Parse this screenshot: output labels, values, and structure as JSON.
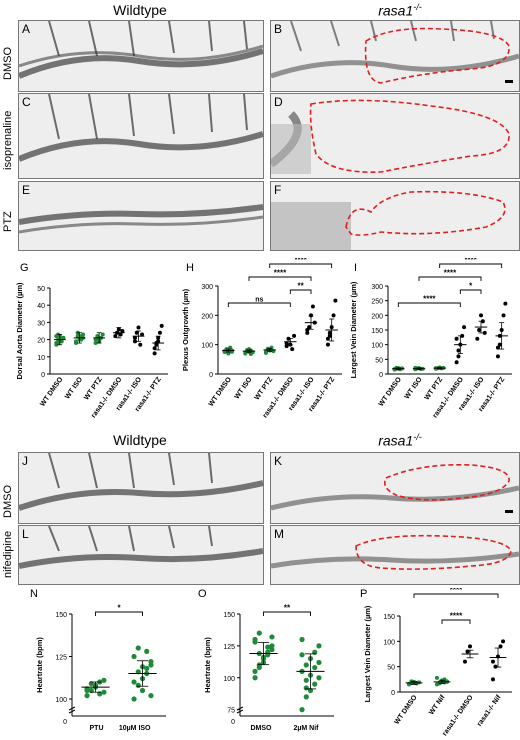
{
  "header_top": {
    "wildtype": "Wildtype",
    "mutant": "rasa1",
    "mutant_sup": "-/-"
  },
  "header_bottom": {
    "wildtype": "Wildtype",
    "mutant": "rasa1",
    "mutant_sup": "-/-"
  },
  "row_labels": {
    "dmso": "DMSO",
    "isoprenaline": "isoprenaline",
    "ptz": "PTZ",
    "dmso2": "DMSO",
    "nifedipine": "nifedipine"
  },
  "panel_letters": {
    "A": "A",
    "B": "B",
    "C": "C",
    "D": "D",
    "E": "E",
    "F": "F",
    "G": "G",
    "H": "H",
    "I": "I",
    "J": "J",
    "K": "K",
    "L": "L",
    "M": "M",
    "N": "N",
    "O": "O",
    "P": "P"
  },
  "colors": {
    "wt_points": "#1f8a3a",
    "mutant_points": "#000000",
    "outline": "#e02020"
  },
  "chart_data": [
    {
      "id": "G",
      "type": "scatter",
      "ylabel": "Dorsal Aorta Diameter (µm)",
      "categories": [
        "WT DMSO",
        "WT ISO",
        "WT PTZ",
        "rasa1-/- DMSO",
        "rasa1-/- ISO",
        "rasa1-/- PTZ"
      ],
      "ylim": [
        0,
        50
      ],
      "yticks": [
        0,
        10,
        20,
        30,
        40,
        50
      ],
      "means": [
        20,
        21,
        21,
        24,
        22,
        18
      ],
      "points": [
        [
          18,
          20,
          22,
          19,
          21,
          17,
          23,
          20,
          19,
          21,
          22,
          18
        ],
        [
          19,
          22,
          21,
          20,
          23,
          18,
          24,
          20,
          22,
          21
        ],
        [
          20,
          22,
          19,
          21,
          23,
          18,
          22,
          20,
          21
        ],
        [
          22,
          24,
          26,
          23,
          25
        ],
        [
          21,
          24,
          27,
          17,
          23,
          19
        ],
        [
          15,
          18,
          21,
          24,
          28,
          12,
          17,
          19
        ]
      ],
      "significance": []
    },
    {
      "id": "H",
      "type": "scatter",
      "ylabel": "Plexus Outgrowth (µm)",
      "categories": [
        "WT DMSO",
        "WT ISO",
        "WT PTZ",
        "rasa1-/- DMSO",
        "rasa1-/- ISO",
        "rasa1-/- PTZ"
      ],
      "ylim": [
        0,
        300
      ],
      "yticks": [
        0,
        100,
        200,
        300
      ],
      "means": [
        80,
        78,
        82,
        110,
        175,
        150
      ],
      "points": [
        [
          75,
          82,
          70,
          88,
          80,
          78,
          85,
          72,
          90,
          76
        ],
        [
          70,
          78,
          85,
          80,
          74,
          72,
          82,
          76,
          68
        ],
        [
          75,
          84,
          80,
          90,
          78,
          72,
          86
        ],
        [
          95,
          120,
          100,
          85,
          130,
          105
        ],
        [
          140,
          160,
          200,
          230,
          175,
          150
        ],
        [
          100,
          130,
          160,
          200,
          250,
          120,
          140
        ]
      ],
      "significance": [
        {
          "from": 0,
          "to": 3,
          "label": "ns"
        },
        {
          "from": 3,
          "to": 4,
          "label": "**"
        },
        {
          "from": 1,
          "to": 4,
          "label": "****"
        },
        {
          "from": 2,
          "to": 5,
          "label": "****"
        }
      ]
    },
    {
      "id": "I",
      "type": "scatter",
      "ylabel": "Largest Vein Diameter (µm)",
      "categories": [
        "WT DMSO",
        "WT ISO",
        "WT PTZ",
        "rasa1-/- DMSO",
        "rasa1-/- ISO",
        "rasa1-/- PTZ"
      ],
      "ylim": [
        0,
        300
      ],
      "yticks": [
        0,
        50,
        100,
        150,
        200,
        250,
        300
      ],
      "means": [
        18,
        18,
        20,
        100,
        160,
        130
      ],
      "points": [
        [
          15,
          18,
          20,
          16,
          19,
          17,
          21,
          18
        ],
        [
          16,
          19,
          20,
          17,
          18,
          21
        ],
        [
          18,
          20,
          22,
          19,
          21,
          20
        ],
        [
          40,
          80,
          100,
          130,
          160,
          120,
          60
        ],
        [
          120,
          150,
          200,
          180,
          140
        ],
        [
          60,
          100,
          150,
          200,
          240,
          90,
          130
        ]
      ],
      "significance": [
        {
          "from": 0,
          "to": 3,
          "label": "****"
        },
        {
          "from": 3,
          "to": 4,
          "label": "*"
        },
        {
          "from": 1,
          "to": 4,
          "label": "****"
        },
        {
          "from": 2,
          "to": 5,
          "label": "****"
        }
      ]
    },
    {
      "id": "N",
      "type": "scatter",
      "ylabel": "Heartrate (bpm)",
      "categories": [
        "PTU",
        "10µM ISO"
      ],
      "ylim": [
        90,
        150
      ],
      "yticks": [
        100,
        125,
        150
      ],
      "axis_break_label": "0",
      "means": [
        107,
        115
      ],
      "points": [
        [
          102,
          105,
          108,
          110,
          104,
          106,
          109,
          107,
          103,
          111,
          105
        ],
        [
          100,
          108,
          112,
          118,
          122,
          125,
          130,
          105,
          115,
          120,
          110,
          116,
          119,
          128,
          102
        ]
      ],
      "significance": [
        {
          "from": 0,
          "to": 1,
          "label": "*"
        }
      ]
    },
    {
      "id": "O",
      "type": "scatter",
      "ylabel": "Heartrate (bpm)",
      "categories": [
        "DMSO",
        "2µM Nif"
      ],
      "ylim": [
        70,
        150
      ],
      "yticks": [
        75,
        100,
        125,
        150
      ],
      "axis_break_label": "0",
      "means": [
        119,
        105
      ],
      "points": [
        [
          105,
          110,
          115,
          120,
          125,
          130,
          135,
          112,
          118,
          122,
          128,
          108,
          116,
          124,
          132,
          100,
          119
        ],
        [
          75,
          85,
          90,
          95,
          100,
          105,
          110,
          115,
          120,
          125,
          130,
          98,
          102,
          108,
          112,
          118,
          92
        ]
      ],
      "significance": [
        {
          "from": 0,
          "to": 1,
          "label": "**"
        }
      ]
    },
    {
      "id": "P",
      "type": "scatter",
      "ylabel": "Largest Vein Diameter (µm)",
      "categories": [
        "WT DMSO",
        "WT Nif",
        "rasa1-/- DMSO",
        "rasa1-/- Nif"
      ],
      "ylim": [
        0,
        150
      ],
      "yticks": [
        0,
        50,
        100,
        150
      ],
      "means": [
        18,
        20,
        75,
        68
      ],
      "points": [
        [
          15,
          18,
          20,
          17,
          19,
          16,
          21
        ],
        [
          15,
          18,
          22,
          25,
          20,
          28,
          17,
          23,
          19,
          21
        ],
        [
          60,
          80,
          90
        ],
        [
          25,
          50,
          70,
          90,
          100,
          60
        ]
      ],
      "significance": [
        {
          "from": 1,
          "to": 2,
          "label": "****"
        },
        {
          "from": 0,
          "to": 3,
          "label": "****"
        }
      ]
    }
  ]
}
